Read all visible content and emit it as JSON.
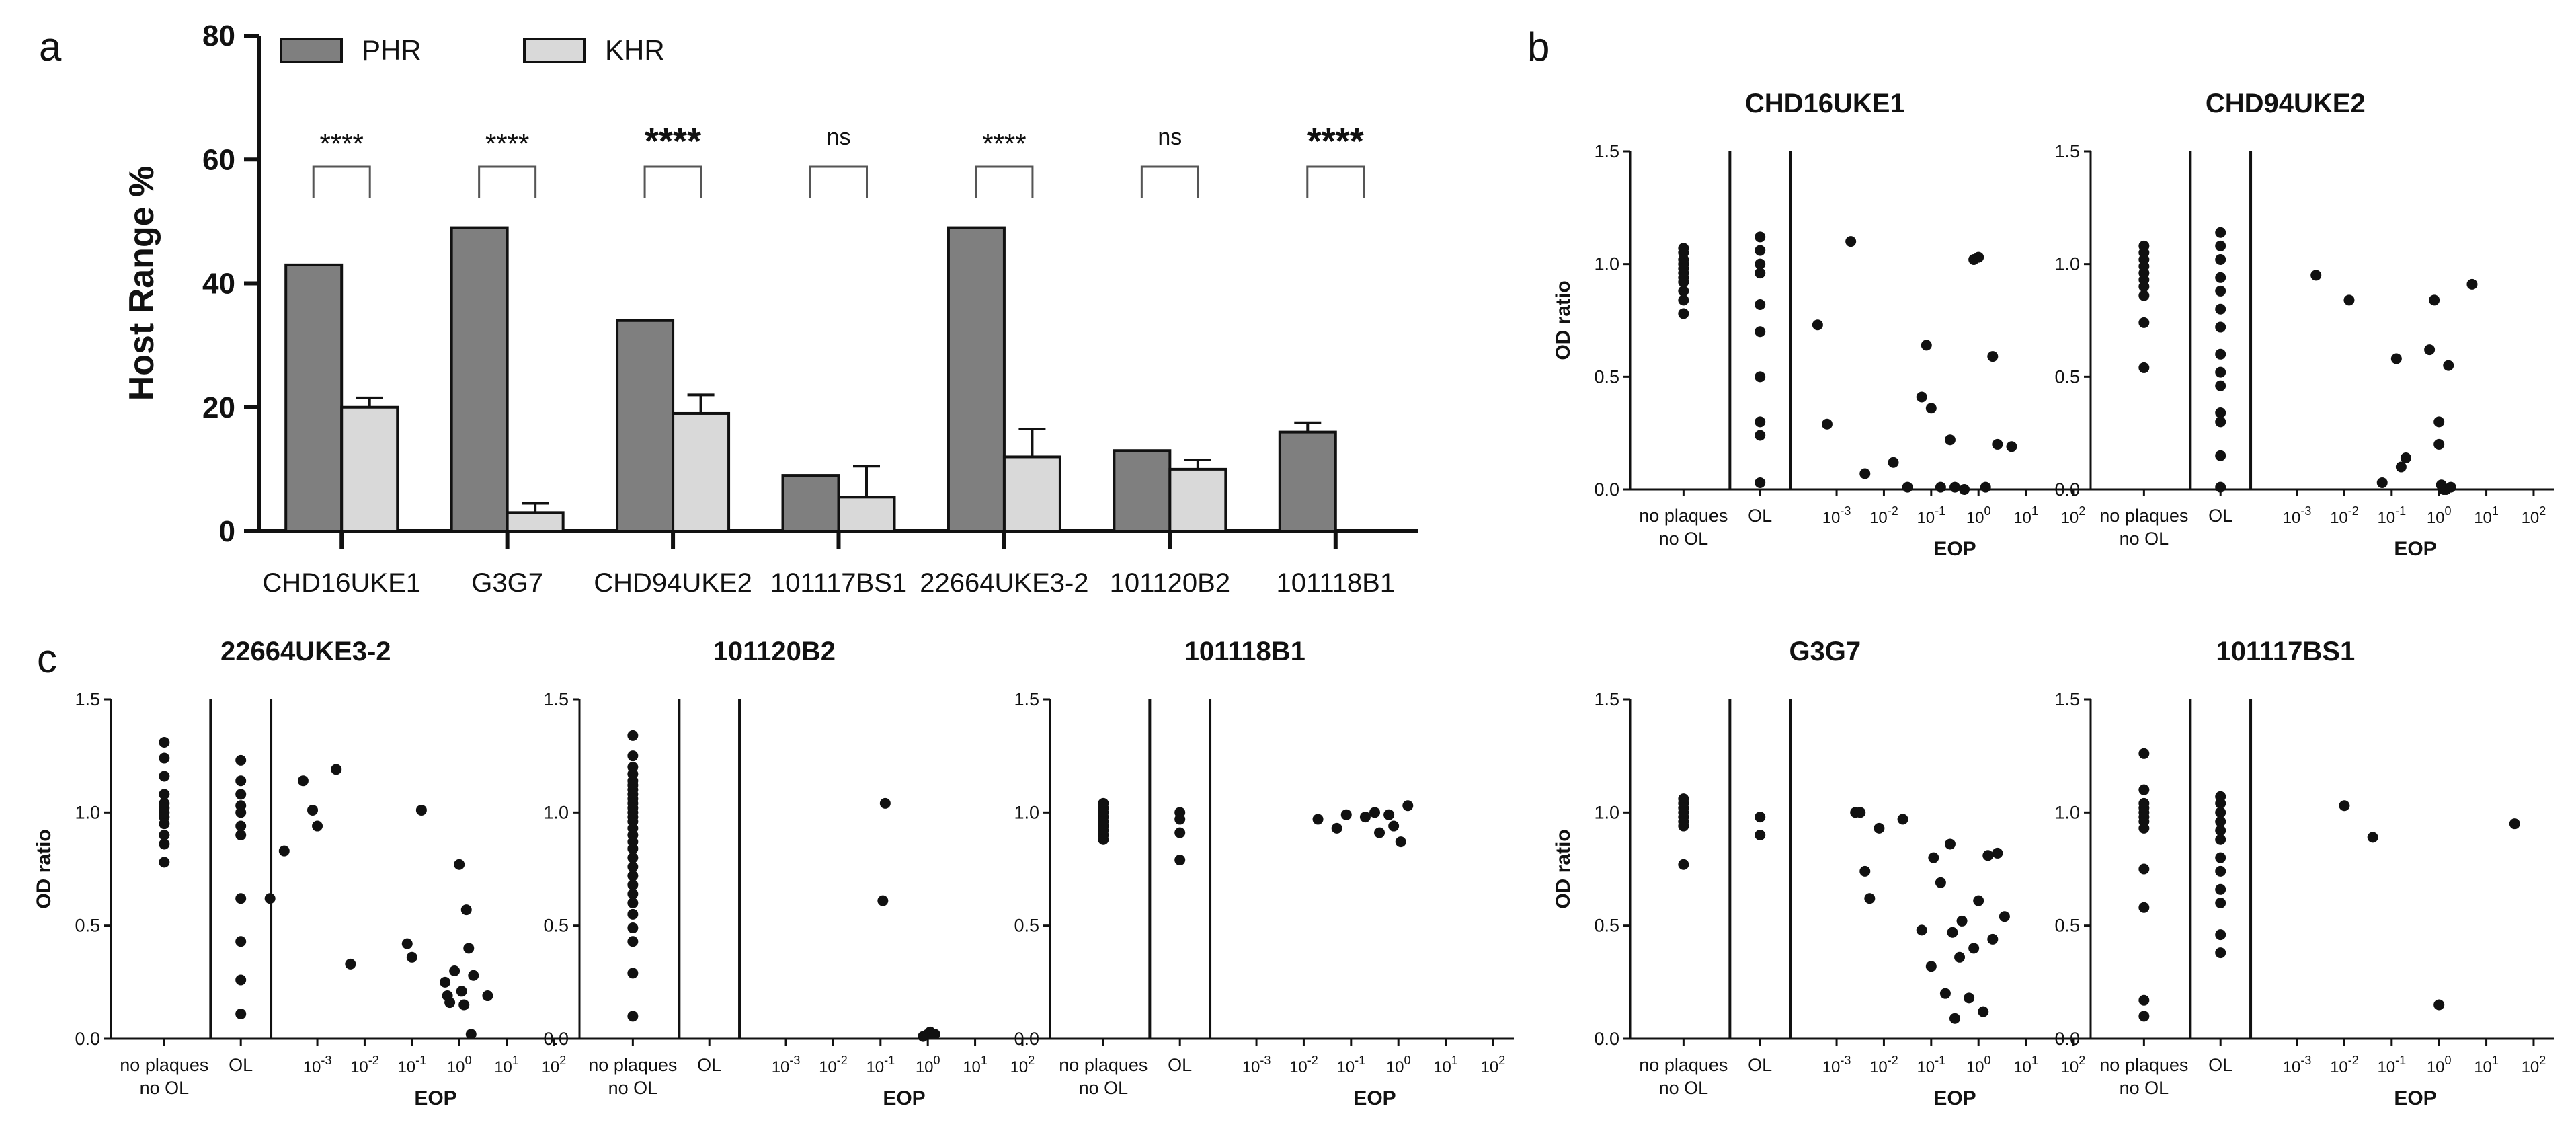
{
  "panels": {
    "a": "a",
    "b": "b",
    "c": "c"
  },
  "colors": {
    "phr": "#7f7f7f",
    "khr": "#d9d9d9",
    "ink": "#111111"
  },
  "chart_data": [
    {
      "id": "a",
      "type": "bar",
      "title": "",
      "ylabel": "Host Range %",
      "xlabel": "",
      "ylim": [
        0,
        80
      ],
      "yticks": [
        "0",
        "20",
        "40",
        "60",
        "80"
      ],
      "categories": [
        "CHD16UKE1",
        "G3G7",
        "CHD94UKE2",
        "101117BS1",
        "22664UKE3-2",
        "101120B2",
        "101118B1"
      ],
      "series": [
        {
          "name": "PHR",
          "values": [
            43,
            49,
            34,
            9,
            49,
            13,
            16
          ],
          "errors": [
            0,
            0,
            0,
            0,
            0,
            0,
            1.5
          ]
        },
        {
          "name": "KHR",
          "values": [
            20,
            3,
            19,
            5.5,
            12,
            10,
            0
          ],
          "errors": [
            1.5,
            1.5,
            3,
            5,
            4.5,
            1.5,
            0
          ]
        }
      ],
      "significance": [
        "****",
        "****",
        "****",
        "ns",
        "****",
        "ns",
        "****"
      ],
      "legend": "top-left"
    },
    {
      "id": "b1",
      "type": "scatter",
      "title": "CHD16UKE1",
      "ylabel": "OD ratio",
      "xlabel": "EOP",
      "yticks": [
        "0.0",
        "0.5",
        "1.0",
        "1.5"
      ],
      "ylim": [
        0,
        1.5
      ],
      "groups": [
        "no plaques\nno OL",
        "OL"
      ],
      "eop_ticks": [
        "-3",
        "-2",
        "-1",
        "0",
        "1",
        "2"
      ],
      "no_plaques": [
        1.07,
        1.05,
        1.02,
        1.0,
        0.98,
        0.96,
        0.94,
        0.92,
        0.88,
        0.84,
        0.78
      ],
      "ol": [
        1.12,
        1.06,
        1.0,
        0.96,
        0.82,
        0.7,
        0.5,
        0.3,
        0.24,
        0.03
      ],
      "eop_points": [
        [
          -3.4,
          0.73
        ],
        [
          -3.2,
          0.29
        ],
        [
          -2.7,
          1.1
        ],
        [
          -2.4,
          0.07
        ],
        [
          -1.8,
          0.12
        ],
        [
          -1.5,
          0.01
        ],
        [
          -1.2,
          0.41
        ],
        [
          -1.1,
          0.64
        ],
        [
          -1.0,
          0.36
        ],
        [
          -0.8,
          0.01
        ],
        [
          -0.6,
          0.22
        ],
        [
          -0.5,
          0.01
        ],
        [
          -0.3,
          0.0
        ],
        [
          -0.1,
          1.02
        ],
        [
          0.0,
          1.03
        ],
        [
          0.15,
          0.01
        ],
        [
          0.3,
          0.59
        ],
        [
          0.4,
          0.2
        ],
        [
          0.7,
          0.19
        ]
      ]
    },
    {
      "id": "b2",
      "type": "scatter",
      "title": "CHD94UKE2",
      "ylabel": "",
      "xlabel": "EOP",
      "yticks": [
        "0.0",
        "0.5",
        "1.0",
        "1.5"
      ],
      "ylim": [
        0,
        1.5
      ],
      "groups": [
        "no plaques\nno OL",
        "OL"
      ],
      "eop_ticks": [
        "-3",
        "-2",
        "-1",
        "0",
        "1",
        "2"
      ],
      "no_plaques": [
        1.08,
        1.05,
        1.02,
        0.99,
        0.96,
        0.93,
        0.9,
        0.86,
        0.74,
        0.54
      ],
      "ol": [
        1.14,
        1.08,
        1.02,
        0.94,
        0.88,
        0.8,
        0.72,
        0.6,
        0.52,
        0.46,
        0.34,
        0.3,
        0.15,
        0.01
      ],
      "eop_points": [
        [
          -2.6,
          0.95
        ],
        [
          -1.9,
          0.84
        ],
        [
          -1.2,
          0.03
        ],
        [
          -0.9,
          0.58
        ],
        [
          -0.8,
          0.1
        ],
        [
          -0.7,
          0.14
        ],
        [
          -0.2,
          0.62
        ],
        [
          -0.1,
          0.84
        ],
        [
          0.0,
          0.3
        ],
        [
          0.0,
          0.2
        ],
        [
          0.05,
          0.02
        ],
        [
          0.1,
          0.0
        ],
        [
          0.15,
          0.0
        ],
        [
          0.2,
          0.55
        ],
        [
          0.25,
          0.01
        ],
        [
          0.7,
          0.91
        ]
      ]
    },
    {
      "id": "b3",
      "type": "scatter",
      "title": "G3G7",
      "ylabel": "OD ratio",
      "xlabel": "EOP",
      "yticks": [
        "0.0",
        "0.5",
        "1.0",
        "1.5"
      ],
      "ylim": [
        0,
        1.5
      ],
      "groups": [
        "no plaques\nno OL",
        "OL"
      ],
      "eop_ticks": [
        "-3",
        "-2",
        "-1",
        "0",
        "1",
        "2"
      ],
      "no_plaques": [
        1.06,
        1.04,
        1.02,
        1.0,
        0.98,
        0.96,
        0.94,
        0.77
      ],
      "ol": [
        0.98,
        0.9
      ],
      "eop_points": [
        [
          -2.6,
          1.0
        ],
        [
          -2.5,
          1.0
        ],
        [
          -2.4,
          0.74
        ],
        [
          -2.3,
          0.62
        ],
        [
          -2.1,
          0.93
        ],
        [
          -1.6,
          0.97
        ],
        [
          -1.2,
          0.48
        ],
        [
          -1.0,
          0.32
        ],
        [
          -0.95,
          0.8
        ],
        [
          -0.8,
          0.69
        ],
        [
          -0.7,
          0.2
        ],
        [
          -0.6,
          0.86
        ],
        [
          -0.55,
          0.47
        ],
        [
          -0.5,
          0.09
        ],
        [
          -0.4,
          0.36
        ],
        [
          -0.35,
          0.52
        ],
        [
          -0.2,
          0.18
        ],
        [
          -0.1,
          0.4
        ],
        [
          0.0,
          0.61
        ],
        [
          0.1,
          0.12
        ],
        [
          0.2,
          0.81
        ],
        [
          0.3,
          0.44
        ],
        [
          0.4,
          0.82
        ],
        [
          0.55,
          0.54
        ]
      ]
    },
    {
      "id": "b4",
      "type": "scatter",
      "title": "101117BS1",
      "ylabel": "",
      "xlabel": "EOP",
      "yticks": [
        "0.0",
        "0.5",
        "1.0",
        "1.5"
      ],
      "ylim": [
        0,
        1.5
      ],
      "groups": [
        "no plaques\nno OL",
        "OL"
      ],
      "eop_ticks": [
        "-3",
        "-2",
        "-1",
        "0",
        "1",
        "2"
      ],
      "no_plaques": [
        1.26,
        1.1,
        1.04,
        1.02,
        1.0,
        0.98,
        0.96,
        0.93,
        0.75,
        0.58,
        0.17,
        0.1
      ],
      "ol": [
        1.07,
        1.04,
        1.0,
        0.96,
        0.92,
        0.88,
        0.8,
        0.74,
        0.66,
        0.6,
        0.46,
        0.38
      ],
      "eop_points": [
        [
          -2.0,
          1.03
        ],
        [
          -1.4,
          0.89
        ],
        [
          0.0,
          0.15
        ],
        [
          1.6,
          0.95
        ]
      ]
    },
    {
      "id": "c1",
      "type": "scatter",
      "title": "22664UKE3-2",
      "ylabel": "OD ratio",
      "xlabel": "EOP",
      "yticks": [
        "0.0",
        "0.5",
        "1.0",
        "1.5"
      ],
      "ylim": [
        0,
        1.5
      ],
      "groups": [
        "no plaques\nno OL",
        "OL"
      ],
      "eop_ticks": [
        "-3",
        "-2",
        "-1",
        "0",
        "1",
        "2"
      ],
      "no_plaques": [
        1.31,
        1.24,
        1.16,
        1.08,
        1.04,
        1.02,
        1.0,
        0.98,
        0.95,
        0.9,
        0.86,
        0.78
      ],
      "ol": [
        1.23,
        1.14,
        1.08,
        1.03,
        1.0,
        0.94,
        0.9,
        0.62,
        0.43,
        0.26,
        0.11
      ],
      "eop_points": [
        [
          -4.0,
          0.62
        ],
        [
          -3.7,
          0.83
        ],
        [
          -3.3,
          1.14
        ],
        [
          -3.1,
          1.01
        ],
        [
          -3.0,
          0.94
        ],
        [
          -2.6,
          1.19
        ],
        [
          -2.3,
          0.33
        ],
        [
          -1.1,
          0.42
        ],
        [
          -1.0,
          0.36
        ],
        [
          -0.8,
          1.01
        ],
        [
          -0.3,
          0.25
        ],
        [
          -0.25,
          0.19
        ],
        [
          -0.2,
          0.16
        ],
        [
          -0.1,
          0.3
        ],
        [
          0.0,
          0.77
        ],
        [
          0.05,
          0.21
        ],
        [
          0.1,
          0.15
        ],
        [
          0.15,
          0.57
        ],
        [
          0.2,
          0.4
        ],
        [
          0.25,
          0.02
        ],
        [
          0.3,
          0.28
        ],
        [
          0.6,
          0.19
        ]
      ]
    },
    {
      "id": "c2",
      "type": "scatter",
      "title": "101120B2",
      "ylabel": "",
      "xlabel": "EOP",
      "yticks": [
        "0.0",
        "0.5",
        "1.0",
        "1.5"
      ],
      "ylim": [
        0,
        1.5
      ],
      "groups": [
        "no plaques\nno OL",
        "OL"
      ],
      "eop_ticks": [
        "-3",
        "-2",
        "-1",
        "0",
        "1",
        "2"
      ],
      "no_plaques": [
        1.34,
        1.25,
        1.2,
        1.17,
        1.14,
        1.12,
        1.1,
        1.08,
        1.06,
        1.04,
        1.02,
        1.0,
        0.98,
        0.96,
        0.93,
        0.9,
        0.87,
        0.84,
        0.8,
        0.76,
        0.72,
        0.68,
        0.64,
        0.6,
        0.55,
        0.49,
        0.43,
        0.29,
        0.1
      ],
      "ol": [],
      "eop_points": [
        [
          -0.9,
          1.04
        ],
        [
          -0.95,
          0.61
        ],
        [
          -0.1,
          0.01
        ],
        [
          0.0,
          0.02
        ],
        [
          0.05,
          0.03
        ],
        [
          0.1,
          0.02
        ],
        [
          0.15,
          0.02
        ]
      ]
    },
    {
      "id": "c3",
      "type": "scatter",
      "title": "101118B1",
      "ylabel": "",
      "xlabel": "EOP",
      "yticks": [
        "0.0",
        "0.5",
        "1.0",
        "1.5"
      ],
      "ylim": [
        0,
        1.5
      ],
      "groups": [
        "no plaques\nno OL",
        "OL"
      ],
      "eop_ticks": [
        "-3",
        "-2",
        "-1",
        "0",
        "1",
        "2"
      ],
      "no_plaques": [
        1.04,
        1.02,
        1.0,
        0.98,
        0.96,
        0.94,
        0.92,
        0.9,
        0.88
      ],
      "ol": [
        1.0,
        0.97,
        0.91,
        0.79
      ],
      "eop_points": [
        [
          -1.7,
          0.97
        ],
        [
          -1.3,
          0.93
        ],
        [
          -1.1,
          0.99
        ],
        [
          -0.7,
          0.98
        ],
        [
          -0.5,
          1.0
        ],
        [
          -0.4,
          0.91
        ],
        [
          -0.2,
          0.99
        ],
        [
          -0.1,
          0.94
        ],
        [
          0.05,
          0.87
        ],
        [
          0.2,
          1.03
        ]
      ]
    }
  ]
}
